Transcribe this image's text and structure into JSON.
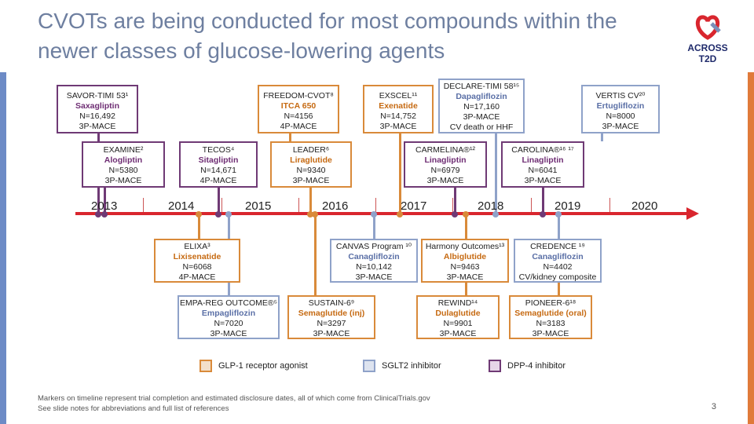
{
  "title": "CVOTs are being conducted for most compounds within the newer classes of glucose-lowering agents",
  "logo": {
    "line1": "ACROSS",
    "line2": "T2D"
  },
  "years": [
    "2013",
    "2014",
    "2015",
    "2016",
    "2017",
    "2018",
    "2019",
    "2020"
  ],
  "trials": [
    {
      "id": "savor",
      "name": "SAVOR-TIMI 53¹",
      "drug": "Saxagliptin",
      "n": "N=16,492",
      "endpoint": "3P-MACE"
    },
    {
      "id": "freedom",
      "name": "FREEDOM-CVOT⁸",
      "drug": "ITCA 650",
      "n": "N=4156",
      "endpoint": "4P-MACE"
    },
    {
      "id": "exscel",
      "name": "EXSCEL¹¹",
      "drug": "Exenatide",
      "n": "N=14,752",
      "endpoint": "3P-MACE"
    },
    {
      "id": "declare",
      "name": "DECLARE-TIMI 58¹⁵",
      "drug": "Dapagliflozin",
      "n": "N=17,160",
      "endpoint": "3P-MACE",
      "endpoint2": "CV death or HHF"
    },
    {
      "id": "vertis",
      "name": "VERTIS CV²⁰",
      "drug": "Ertugliflozin",
      "n": "N=8000",
      "endpoint": "3P-MACE"
    },
    {
      "id": "examine",
      "name": "EXAMINE²",
      "drug": "Alogliptin",
      "n": "N=5380",
      "endpoint": "3P-MACE"
    },
    {
      "id": "tecos",
      "name": "TECOS⁴",
      "drug": "Sitagliptin",
      "n": "N=14,671",
      "endpoint": "4P-MACE"
    },
    {
      "id": "leader",
      "name": "LEADER⁶",
      "drug": "Liraglutide",
      "n": "N=9340",
      "endpoint": "3P-MACE"
    },
    {
      "id": "carmelina",
      "name": "CARMELINA®¹²",
      "drug": "Linagliptin",
      "n": "N=6979",
      "endpoint": "3P-MACE"
    },
    {
      "id": "carolina",
      "name": "CAROLINA®¹⁶ ¹⁷",
      "drug": "Linagliptin",
      "n": "N=6041",
      "endpoint": "3P-MACE"
    },
    {
      "id": "elixa",
      "name": "ELIXA³",
      "drug": "Lixisenatide",
      "n": "N=6068",
      "endpoint": "4P-MACE"
    },
    {
      "id": "canvas",
      "name": "CANVAS Program ¹⁰",
      "drug": "Canagliflozin",
      "n": "N=10,142",
      "endpoint": "3P-MACE"
    },
    {
      "id": "harmony",
      "name": "Harmony Outcomes¹³",
      "drug": "Albiglutide",
      "n": "N=9463",
      "endpoint": "3P-MACE"
    },
    {
      "id": "credence",
      "name": "CREDENCE ¹⁹",
      "drug": "Canagliflozin",
      "n": "N=4402",
      "endpoint": "CV/kidney composite"
    },
    {
      "id": "empareg",
      "name": "EMPA-REG OUTCOME®⁵",
      "drug": "Empagliflozin",
      "n": "N=7020",
      "endpoint": "3P-MACE"
    },
    {
      "id": "sustain",
      "name": "SUSTAIN-6⁹",
      "drug": "Semaglutide (inj)",
      "n": "N=3297",
      "endpoint": "3P-MACE"
    },
    {
      "id": "rewind",
      "name": "REWIND¹⁴",
      "drug": "Dulaglutide",
      "n": "N=9901",
      "endpoint": "3P-MACE"
    },
    {
      "id": "pioneer",
      "name": "PIONEER-6¹⁸",
      "drug": "Semaglutide (oral)",
      "n": "N=3183",
      "endpoint": "3P-MACE"
    }
  ],
  "legend": {
    "glp": "GLP-1 receptor agonist",
    "sglt": "SGLT2 inhibitor",
    "dpp": "DPP-4 inhibitor"
  },
  "colors": {
    "glp": "#d98a3a",
    "sglt": "#8fa2c9",
    "dpp": "#6f3a75",
    "timeline": "#d9262e"
  },
  "footnote": {
    "line1": "Markers on timeline represent trial completion and estimated disclosure dates, all of which come from ClinicalTrials.gov",
    "line2": "See slide notes for abbreviations and full list of references"
  },
  "page_number": "3"
}
